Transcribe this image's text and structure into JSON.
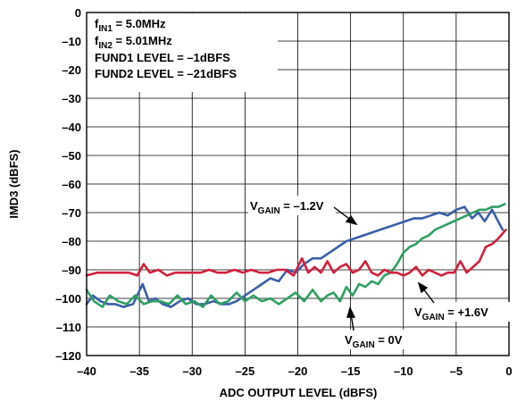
{
  "chart_data": {
    "type": "line",
    "xlabel": "ADC OUTPUT LEVEL (dBFS)",
    "ylabel": "IMD3 (dBFS)",
    "xlim": [
      -40,
      0
    ],
    "ylim": [
      -120,
      0
    ],
    "x_ticks": [
      -40,
      -35,
      -30,
      -25,
      -20,
      -15,
      -10,
      -5,
      0
    ],
    "x_tick_labels": [
      "–40",
      "–35",
      "–30",
      "–25",
      "–20",
      "–15",
      "–10",
      "–5",
      "0"
    ],
    "y_ticks": [
      0,
      -10,
      -20,
      -30,
      -40,
      -50,
      -60,
      -70,
      -80,
      -90,
      -100,
      -110,
      -120
    ],
    "y_tick_labels": [
      "0",
      "–10",
      "–20",
      "–30",
      "–40",
      "–50",
      "–60",
      "–70",
      "–80",
      "–90",
      "–100",
      "–110",
      "–120"
    ],
    "grid": true,
    "conditions": [
      {
        "prefix": "f",
        "sub": "IN1",
        "suffix": " = 5.0MHz"
      },
      {
        "prefix": "f",
        "sub": "IN2",
        "suffix": " = 5.01MHz"
      },
      {
        "prefix": "FUND1 LEVEL = –1dBFS",
        "sub": "",
        "suffix": ""
      },
      {
        "prefix": "FUND2 LEVEL = –21dBFS",
        "sub": "",
        "suffix": ""
      }
    ],
    "annotations": [
      {
        "prefix": "V",
        "sub": "GAIN",
        "suffix": " = –1.2V"
      },
      {
        "prefix": "V",
        "sub": "GAIN",
        "suffix": " = +1.6V"
      },
      {
        "prefix": "V",
        "sub": "GAIN",
        "suffix": " = 0V"
      }
    ],
    "series": [
      {
        "color": "#3a5fa8",
        "x": [
          -40,
          -39.4,
          -38.7,
          -38,
          -37.3,
          -36.5,
          -35.6,
          -34.7,
          -34.1,
          -33.5,
          -32.8,
          -32,
          -31.2,
          -30.4,
          -29.6,
          -28.8,
          -28,
          -27.2,
          -26.5,
          -25.8,
          -25,
          -24.2,
          -23.4,
          -22.6,
          -21.8,
          -21,
          -20.2,
          -19.4,
          -18.6,
          -17.8,
          -17,
          -16.2,
          -15.4,
          -14.6,
          -13.8,
          -13,
          -12.2,
          -11.4,
          -10.6,
          -9.8,
          -9,
          -8.2,
          -7.4,
          -6.6,
          -5.8,
          -5,
          -4.2,
          -3.5,
          -2.9,
          -2.3,
          -1.6,
          -0.6
        ],
        "y": [
          -102,
          -99,
          -101,
          -102,
          -102,
          -103,
          -102,
          -95,
          -101,
          -100,
          -102,
          -103,
          -101,
          -100,
          -102,
          -102,
          -101,
          -102,
          -102,
          -101,
          -99,
          -97,
          -95,
          -93,
          -94,
          -90,
          -91,
          -88,
          -86,
          -86,
          -84,
          -82,
          -80,
          -79,
          -78,
          -77,
          -76,
          -75,
          -74,
          -73,
          -72,
          -72,
          -71,
          -70,
          -71,
          -69,
          -68,
          -72,
          -70,
          -73,
          -69,
          -76
        ]
      },
      {
        "color": "#d21f3c",
        "x": [
          -40,
          -39,
          -38,
          -37,
          -36,
          -35.2,
          -34.6,
          -34,
          -33.2,
          -32.4,
          -31.6,
          -30.8,
          -30,
          -29.2,
          -28.4,
          -27.6,
          -26.8,
          -26,
          -25.2,
          -24.4,
          -23.6,
          -22.8,
          -22,
          -21.2,
          -20.4,
          -19.6,
          -19,
          -18.4,
          -17.8,
          -17.2,
          -16.6,
          -16,
          -15.4,
          -14.8,
          -14.2,
          -13.6,
          -13,
          -12.4,
          -11.8,
          -11.2,
          -10.6,
          -10,
          -9.4,
          -8.8,
          -8.2,
          -7.6,
          -7,
          -6.4,
          -5.8,
          -5.2,
          -4.6,
          -4,
          -3.4,
          -2.8,
          -2.2,
          -1.6,
          -1,
          -0.3
        ],
        "y": [
          -92,
          -91,
          -91,
          -91,
          -91,
          -92,
          -88,
          -91,
          -90,
          -92,
          -91,
          -91,
          -91,
          -91,
          -90,
          -91,
          -91,
          -90,
          -91,
          -90,
          -91,
          -91,
          -90,
          -90,
          -92,
          -86,
          -91,
          -89,
          -91,
          -87,
          -91,
          -89,
          -88,
          -91,
          -90,
          -87,
          -91,
          -92,
          -90,
          -91,
          -91,
          -92,
          -91,
          -89,
          -92,
          -90,
          -91,
          -92,
          -91,
          -91,
          -87,
          -91,
          -89,
          -87,
          -82,
          -81,
          -79,
          -76
        ]
      },
      {
        "color": "#2f9e63",
        "x": [
          -40,
          -39.3,
          -38.5,
          -37.8,
          -37,
          -36.2,
          -35.4,
          -34.6,
          -33.8,
          -33,
          -32.2,
          -31.4,
          -30.6,
          -29.8,
          -29,
          -28.2,
          -27.4,
          -26.6,
          -25.8,
          -25,
          -24.2,
          -23.4,
          -22.6,
          -21.8,
          -21,
          -20.2,
          -19.4,
          -18.6,
          -17.8,
          -17.2,
          -16.6,
          -16,
          -15.4,
          -14.8,
          -14.2,
          -13.6,
          -13,
          -12.4,
          -11.8,
          -11.2,
          -10.6,
          -10,
          -9.4,
          -8.8,
          -8.2,
          -7.6,
          -7,
          -6.4,
          -5.8,
          -5.2,
          -4.6,
          -4,
          -3.4,
          -2.8,
          -2.2,
          -1.6,
          -1,
          -0.4
        ],
        "y": [
          -97,
          -101,
          -103,
          -99,
          -101,
          -102,
          -99,
          -102,
          -101,
          -101,
          -102,
          -99,
          -102,
          -101,
          -103,
          -99,
          -102,
          -101,
          -98,
          -101,
          -99,
          -101,
          -100,
          -102,
          -100,
          -98,
          -101,
          -97,
          -101,
          -99,
          -98,
          -101,
          -96,
          -99,
          -95,
          -96,
          -94,
          -95,
          -92,
          -91,
          -88,
          -84,
          -82,
          -81,
          -79,
          -78,
          -76,
          -75,
          -74,
          -73,
          -72,
          -71,
          -70,
          -69,
          -69,
          -68,
          -68,
          -67
        ]
      }
    ]
  }
}
